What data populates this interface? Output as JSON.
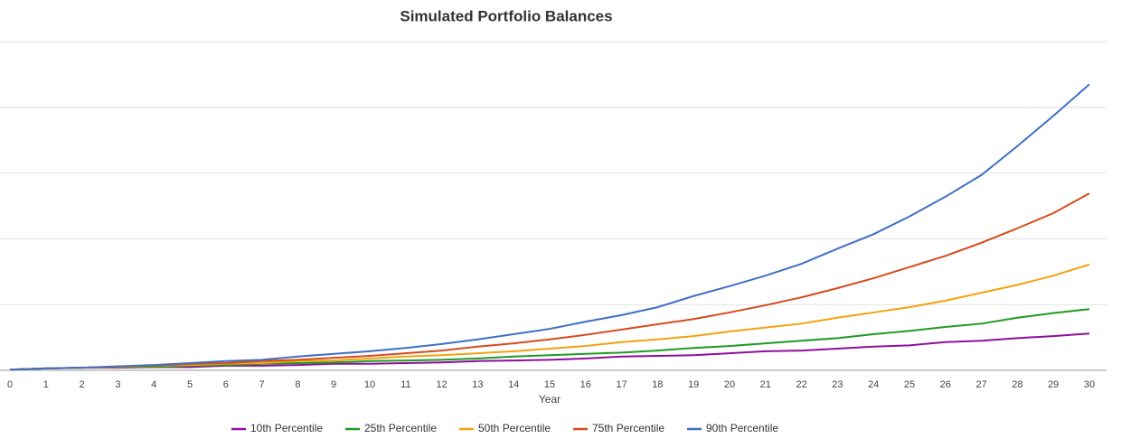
{
  "chart_data": {
    "type": "line",
    "title": "Simulated Portfolio Balances",
    "x_label": "Year",
    "x": [
      0,
      1,
      2,
      3,
      4,
      5,
      6,
      7,
      8,
      9,
      10,
      11,
      12,
      13,
      14,
      15,
      16,
      17,
      18,
      19,
      20,
      21,
      22,
      23,
      24,
      25,
      26,
      27,
      28,
      29,
      30
    ],
    "xlim": [
      0,
      30
    ],
    "xticks": [
      0,
      1,
      2,
      3,
      4,
      5,
      6,
      7,
      8,
      9,
      10,
      11,
      12,
      13,
      14,
      15,
      16,
      17,
      18,
      19,
      20,
      21,
      22,
      23,
      24,
      25,
      26,
      27,
      28,
      29,
      30
    ],
    "ylim": [
      0,
      5
    ],
    "yticks": [
      0,
      1,
      2,
      3,
      4,
      5
    ],
    "grid": true,
    "series": [
      {
        "name": "10th Percentile",
        "color": "#8e0f9c",
        "values": [
          0.01,
          0.03,
          0.04,
          0.04,
          0.05,
          0.05,
          0.07,
          0.07,
          0.08,
          0.1,
          0.1,
          0.11,
          0.12,
          0.14,
          0.15,
          0.16,
          0.18,
          0.21,
          0.22,
          0.23,
          0.26,
          0.29,
          0.3,
          0.33,
          0.36,
          0.38,
          0.43,
          0.45,
          0.49,
          0.52,
          0.56
        ]
      },
      {
        "name": "25th Percentile",
        "color": "#1f9a24",
        "values": [
          0.01,
          0.03,
          0.04,
          0.05,
          0.05,
          0.07,
          0.08,
          0.1,
          0.11,
          0.12,
          0.14,
          0.15,
          0.16,
          0.18,
          0.21,
          0.23,
          0.25,
          0.27,
          0.3,
          0.34,
          0.37,
          0.41,
          0.45,
          0.49,
          0.55,
          0.6,
          0.66,
          0.71,
          0.8,
          0.87,
          0.93
        ]
      },
      {
        "name": "50th Percentile",
        "color": "#f2a20f",
        "values": [
          0.01,
          0.03,
          0.04,
          0.05,
          0.07,
          0.08,
          0.1,
          0.11,
          0.14,
          0.15,
          0.18,
          0.21,
          0.23,
          0.26,
          0.29,
          0.33,
          0.37,
          0.43,
          0.47,
          0.52,
          0.59,
          0.65,
          0.71,
          0.8,
          0.88,
          0.96,
          1.06,
          1.18,
          1.3,
          1.44,
          1.61
        ]
      },
      {
        "name": "75th Percentile",
        "color": "#d64a1c",
        "values": [
          0.01,
          0.03,
          0.04,
          0.06,
          0.07,
          0.1,
          0.11,
          0.14,
          0.16,
          0.19,
          0.22,
          0.26,
          0.3,
          0.36,
          0.41,
          0.47,
          0.54,
          0.62,
          0.7,
          0.78,
          0.88,
          0.99,
          1.11,
          1.25,
          1.4,
          1.57,
          1.74,
          1.94,
          2.16,
          2.39,
          2.69
        ]
      },
      {
        "name": "90th Percentile",
        "color": "#3f6fc3",
        "values": [
          0.01,
          0.03,
          0.04,
          0.06,
          0.08,
          0.11,
          0.14,
          0.16,
          0.21,
          0.25,
          0.29,
          0.34,
          0.4,
          0.47,
          0.55,
          0.63,
          0.74,
          0.84,
          0.96,
          1.13,
          1.28,
          1.44,
          1.62,
          1.85,
          2.07,
          2.34,
          2.64,
          2.97,
          3.41,
          3.87,
          4.35
        ]
      }
    ]
  }
}
